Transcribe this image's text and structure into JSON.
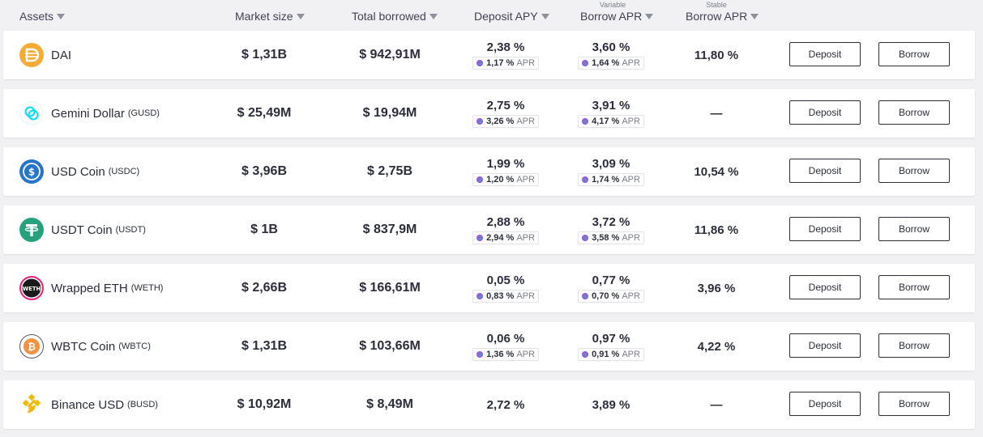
{
  "header": {
    "assets": "Assets",
    "market_size": "Market size",
    "total_borrowed": "Total borrowed",
    "deposit_apy": "Deposit APY",
    "variable_caption": "Variable",
    "variable_borrow_apr": "Borrow APR",
    "stable_caption": "Stable",
    "stable_borrow_apr": "Borrow APR"
  },
  "rows": [
    {
      "name": "DAI",
      "symbol": "",
      "market_size": "$ 1,31B",
      "total_borrowed": "$ 942,91M",
      "deposit_apy": "2,38 %",
      "deposit_reward": "1,17 %",
      "variable_apr": "3,60 %",
      "variable_reward": "1,64 %",
      "stable_apr": "11,80 %",
      "reward_suffix": "APR",
      "deposit_label": "Deposit",
      "borrow_label": "Borrow",
      "icon": "dai-icon",
      "icon_color": "#f5ac37"
    },
    {
      "name": "Gemini Dollar",
      "symbol": "(GUSD)",
      "market_size": "$ 25,49M",
      "total_borrowed": "$ 19,94M",
      "deposit_apy": "2,75 %",
      "deposit_reward": "3,26 %",
      "variable_apr": "3,91 %",
      "variable_reward": "4,17 %",
      "stable_apr": "—",
      "reward_suffix": "APR",
      "deposit_label": "Deposit",
      "borrow_label": "Borrow",
      "icon": "gusd-icon",
      "icon_color": "#00dcfa"
    },
    {
      "name": "USD Coin",
      "symbol": "(USDC)",
      "market_size": "$ 3,96B",
      "total_borrowed": "$ 2,75B",
      "deposit_apy": "1,99 %",
      "deposit_reward": "1,20 %",
      "variable_apr": "3,09 %",
      "variable_reward": "1,74 %",
      "stable_apr": "10,54 %",
      "reward_suffix": "APR",
      "deposit_label": "Deposit",
      "borrow_label": "Borrow",
      "icon": "usdc-icon",
      "icon_color": "#2775ca"
    },
    {
      "name": "USDT Coin",
      "symbol": "(USDT)",
      "market_size": "$ 1B",
      "total_borrowed": "$ 837,9M",
      "deposit_apy": "2,88 %",
      "deposit_reward": "2,94 %",
      "variable_apr": "3,72 %",
      "variable_reward": "3,58 %",
      "stable_apr": "11,86 %",
      "reward_suffix": "APR",
      "deposit_label": "Deposit",
      "borrow_label": "Borrow",
      "icon": "usdt-icon",
      "icon_color": "#26a17b"
    },
    {
      "name": "Wrapped ETH",
      "symbol": "(WETH)",
      "market_size": "$ 2,66B",
      "total_borrowed": "$ 166,61M",
      "deposit_apy": "0,05 %",
      "deposit_reward": "0,83 %",
      "variable_apr": "0,77 %",
      "variable_reward": "0,70 %",
      "stable_apr": "3,96 %",
      "reward_suffix": "APR",
      "deposit_label": "Deposit",
      "borrow_label": "Borrow",
      "icon": "weth-icon",
      "icon_color": "#ec1c79",
      "icon_text": "WETH"
    },
    {
      "name": "WBTC Coin",
      "symbol": "(WBTC)",
      "market_size": "$ 1,31B",
      "total_borrowed": "$ 103,66M",
      "deposit_apy": "0,06 %",
      "deposit_reward": "1,36 %",
      "variable_apr": "0,97 %",
      "variable_reward": "0,91 %",
      "stable_apr": "4,22 %",
      "reward_suffix": "APR",
      "deposit_label": "Deposit",
      "borrow_label": "Borrow",
      "icon": "wbtc-icon",
      "icon_color": "#f09242"
    },
    {
      "name": "Binance USD",
      "symbol": "(BUSD)",
      "market_size": "$ 10,92M",
      "total_borrowed": "$ 8,49M",
      "deposit_apy": "2,72 %",
      "deposit_reward": "",
      "variable_apr": "3,89 %",
      "variable_reward": "",
      "stable_apr": "—",
      "reward_suffix": "",
      "deposit_label": "Deposit",
      "borrow_label": "Borrow",
      "icon": "busd-icon",
      "icon_color": "#f0b90b"
    }
  ]
}
